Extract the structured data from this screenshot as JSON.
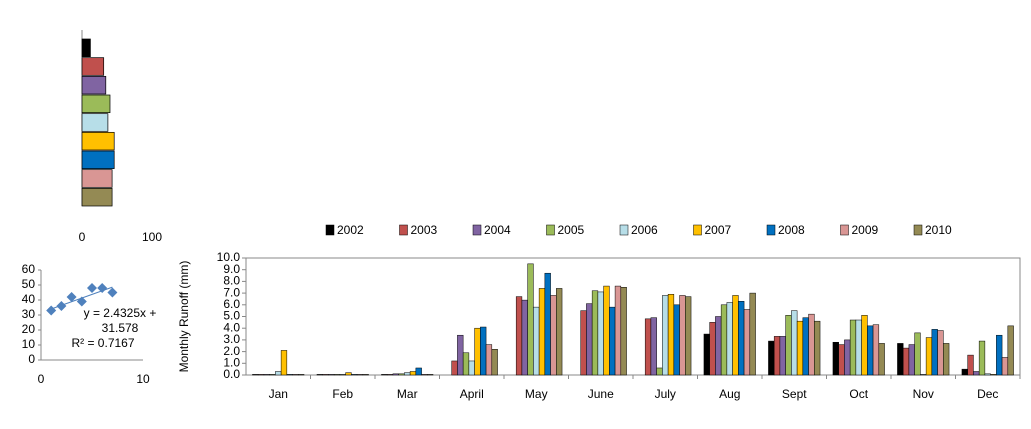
{
  "chart_data": [
    {
      "type": "bar",
      "ylabel": "Monthly  Runoff (mm)",
      "categories": [
        "Jan",
        "Feb",
        "Mar",
        "April",
        "May",
        "June",
        "July",
        "Aug",
        "Sept",
        "Oct",
        "Nov",
        "Dec"
      ],
      "series": [
        {
          "name": "2002",
          "color": "#000000",
          "values": [
            0.05,
            0.05,
            0.05,
            0,
            0,
            0,
            0,
            3.5,
            2.9,
            2.8,
            2.7,
            0.5
          ]
        },
        {
          "name": "2003",
          "color": "#c0504d",
          "values": [
            0.05,
            0.05,
            0.05,
            1.2,
            6.7,
            5.5,
            4.8,
            4.5,
            3.3,
            2.6,
            2.3,
            1.7
          ]
        },
        {
          "name": "2004",
          "color": "#8064a2",
          "values": [
            0.05,
            0.05,
            0.1,
            3.4,
            6.4,
            6.1,
            4.9,
            5.0,
            3.3,
            3.0,
            2.6,
            0.3
          ]
        },
        {
          "name": "2005",
          "color": "#9bbb59",
          "values": [
            0.05,
            0.05,
            0.1,
            1.9,
            9.5,
            7.2,
            0.6,
            6.0,
            5.1,
            4.7,
            3.6,
            2.9
          ]
        },
        {
          "name": "2006",
          "color": "#b7dee8",
          "values": [
            0.3,
            0.05,
            0.2,
            1.2,
            5.8,
            7.1,
            6.8,
            6.2,
            5.5,
            4.7,
            0.05,
            0.1
          ]
        },
        {
          "name": "2007",
          "color": "#ffc000",
          "values": [
            2.1,
            0.2,
            0.3,
            4.0,
            7.4,
            7.6,
            6.9,
            6.8,
            4.6,
            5.1,
            3.2,
            0.05
          ]
        },
        {
          "name": "2008",
          "color": "#0070c0",
          "values": [
            0.05,
            0.05,
            0.6,
            4.1,
            8.7,
            5.8,
            6.0,
            6.3,
            4.9,
            4.2,
            3.9,
            3.4
          ]
        },
        {
          "name": "2009",
          "color": "#d99694",
          "values": [
            0.05,
            0.05,
            0.05,
            2.6,
            6.8,
            7.6,
            6.8,
            5.6,
            5.2,
            4.3,
            3.8,
            1.5
          ]
        },
        {
          "name": "2010",
          "color": "#948a54",
          "values": [
            0.05,
            0.05,
            0.05,
            2.2,
            7.4,
            7.5,
            6.7,
            7.0,
            4.6,
            2.7,
            2.7,
            4.2
          ]
        }
      ],
      "ylim": [
        0,
        10
      ],
      "yticks": [
        {
          "value": 0,
          "label": "0.0"
        },
        {
          "value": 1,
          "label": "1.0"
        },
        {
          "value": 2,
          "label": "2.0"
        },
        {
          "value": 3,
          "label": "3.0"
        },
        {
          "value": 4,
          "label": "4.0"
        },
        {
          "value": 5,
          "label": "5.0"
        },
        {
          "value": 6,
          "label": "6.0"
        },
        {
          "value": 7,
          "label": "7.0"
        },
        {
          "value": 8,
          "label": "8.0"
        },
        {
          "value": 9,
          "label": "9.0"
        },
        {
          "value": 10,
          "label": "10.0"
        }
      ],
      "legend": "top"
    },
    {
      "type": "hbar",
      "values": [
        12,
        31,
        34,
        40,
        37,
        46,
        46,
        43,
        43
      ],
      "colors": [
        "#000000",
        "#c0504d",
        "#8064a2",
        "#9bbb59",
        "#b7dee8",
        "#ffc000",
        "#0070c0",
        "#d99694",
        "#948a54"
      ],
      "xlim": [
        0,
        100
      ],
      "xticks": [
        0,
        100
      ]
    },
    {
      "type": "scatter",
      "color": "#4f81bd",
      "x": [
        1,
        2,
        3,
        4,
        5,
        6,
        7
      ],
      "values": [
        33,
        36,
        42,
        39,
        48,
        48,
        45
      ],
      "xlim": [
        0,
        10
      ],
      "xticks": [
        0,
        10
      ],
      "ylim": [
        0,
        60
      ],
      "yticks": [
        0,
        10,
        20,
        30,
        40,
        50,
        60
      ],
      "trendline": {
        "slope": 2.4325,
        "intercept": 31.578
      },
      "annotations": [
        "y = 2.4325x +",
        "31.578",
        "R² = 0.7167"
      ]
    }
  ]
}
